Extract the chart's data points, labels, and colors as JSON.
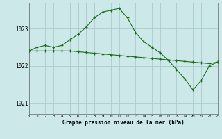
{
  "bg_color": "#cce8e8",
  "grid_color": "#aacccc",
  "line_color": "#1a6b1a",
  "xlim": [
    0,
    23
  ],
  "ylim": [
    1020.7,
    1023.7
  ],
  "yticks": [
    1021,
    1022,
    1023
  ],
  "xticks": [
    0,
    1,
    2,
    3,
    4,
    5,
    6,
    7,
    8,
    9,
    10,
    11,
    12,
    13,
    14,
    15,
    16,
    17,
    18,
    19,
    20,
    21,
    22,
    23
  ],
  "xlabel": "Graphe pression niveau de la mer (hPa)",
  "series_flat_x": [
    0,
    1,
    2,
    3,
    4,
    5,
    6,
    7,
    8,
    9,
    10,
    11,
    12,
    13,
    14,
    15,
    16,
    17,
    18,
    19,
    20,
    21,
    22,
    23
  ],
  "series_flat_y": [
    1022.4,
    1022.4,
    1022.4,
    1022.4,
    1022.4,
    1022.4,
    1022.38,
    1022.36,
    1022.34,
    1022.32,
    1022.3,
    1022.28,
    1022.26,
    1022.24,
    1022.22,
    1022.2,
    1022.18,
    1022.16,
    1022.14,
    1022.12,
    1022.1,
    1022.08,
    1022.06,
    1022.1
  ],
  "series_main_x": [
    0,
    1,
    2,
    3,
    4,
    5,
    6,
    7,
    8,
    9,
    10,
    11,
    12,
    13,
    14,
    15,
    16,
    17,
    18,
    19,
    20,
    21,
    22,
    23
  ],
  "series_main_y": [
    1022.4,
    1022.5,
    1022.55,
    1022.5,
    1022.55,
    1022.7,
    1022.85,
    1023.05,
    1023.3,
    1023.45,
    1023.5,
    1023.55,
    1023.3,
    1022.9,
    1022.65,
    1022.5,
    1022.35,
    1022.15,
    1021.9,
    1021.65,
    1021.35,
    1021.6,
    1022.0,
    1022.1
  ]
}
